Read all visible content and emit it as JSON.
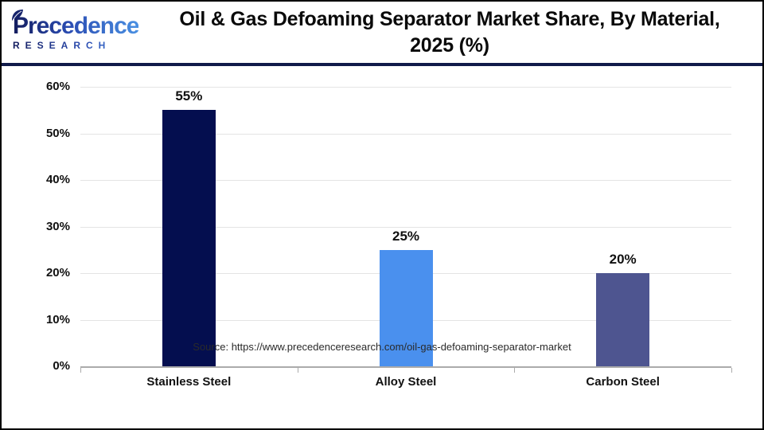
{
  "header": {
    "logo": {
      "name": "Precedence",
      "tagline": "RESEARCH"
    },
    "title_line1": "Oil & Gas Defoaming Separator Market Share, By Material,",
    "title_line2": "2025 (%)"
  },
  "chart_data": {
    "type": "bar",
    "title": "Oil & Gas Defoaming Separator Market Share, By Material, 2025 (%)",
    "categories": [
      "Stainless Steel",
      "Alloy Steel",
      "Carbon Steel"
    ],
    "values": [
      55,
      25,
      20
    ],
    "value_labels": [
      "55%",
      "25%",
      "20%"
    ],
    "bar_colors": [
      "#040e4f",
      "#4a90ee",
      "#4e5590"
    ],
    "xlabel": "",
    "ylabel": "",
    "ylim": [
      0,
      60
    ],
    "ytick_step": 10,
    "ytick_labels": [
      "0%",
      "10%",
      "20%",
      "30%",
      "40%",
      "50%",
      "60%"
    ],
    "grid": true,
    "legend_position": "none"
  },
  "footer": {
    "source": "Source: https://www.precedenceresearch.com/oil-gas-defoaming-separator-market"
  },
  "colors": {
    "grid": "#e4e4e4",
    "axis": "#ababab",
    "header_rule": "#101a4a",
    "page_border": "#000000",
    "logo_gradient_start": "#131c5e",
    "logo_gradient_end": "#4a90e2"
  }
}
